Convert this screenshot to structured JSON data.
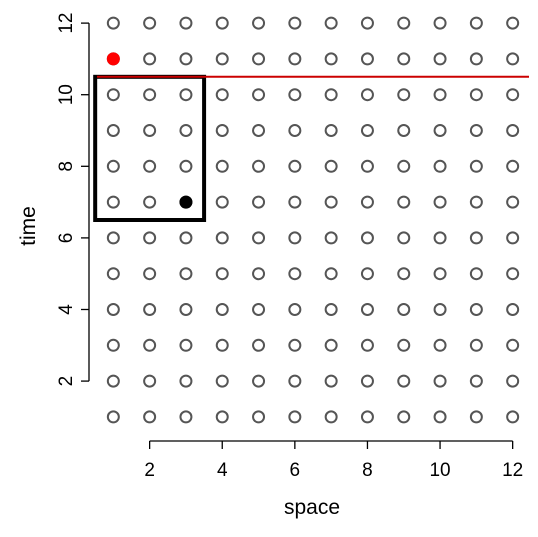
{
  "chart_data": {
    "type": "scatter",
    "title": "",
    "xlabel": "space",
    "ylabel": "time",
    "xlim": [
      0.55,
      12.45
    ],
    "ylim": [
      0.55,
      12.45
    ],
    "xticks": [
      2,
      4,
      6,
      8,
      10,
      12
    ],
    "yticks": [
      2,
      4,
      6,
      8,
      10,
      12
    ],
    "grid": {
      "x": [
        1,
        2,
        3,
        4,
        5,
        6,
        7,
        8,
        9,
        10,
        11,
        12
      ],
      "y": [
        1,
        2,
        3,
        4,
        5,
        6,
        7,
        8,
        9,
        10,
        11,
        12
      ],
      "marker": "open-circle",
      "color": "#555555"
    },
    "highlighted_points": [
      {
        "x": 1,
        "y": 11,
        "color": "#ff0000",
        "marker": "filled-circle"
      },
      {
        "x": 3,
        "y": 7,
        "color": "#000000",
        "marker": "filled-circle"
      }
    ],
    "hline": {
      "y": 10.5,
      "color": "#cc0000"
    },
    "rectangle": {
      "x": [
        0.5,
        3.5
      ],
      "y": [
        6.5,
        10.5
      ],
      "color": "#000000"
    }
  }
}
